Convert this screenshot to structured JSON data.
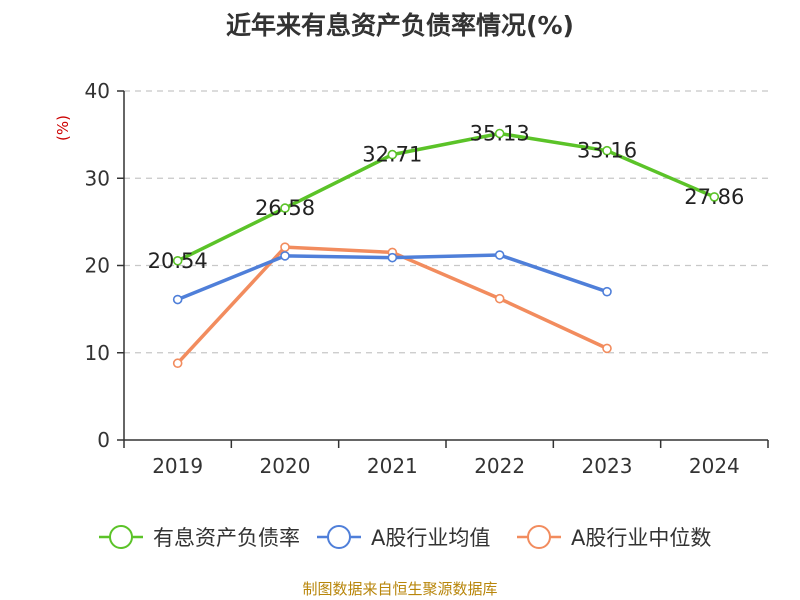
{
  "chart_data": {
    "type": "line",
    "title": "近年来有息资产负债率情况(%)",
    "ylabel": "(%)",
    "xlabel": "",
    "categories": [
      "2019",
      "2020",
      "2021",
      "2022",
      "2023",
      "2024"
    ],
    "ylim": [
      0,
      40
    ],
    "yticks": [
      0,
      10,
      20,
      30,
      40
    ],
    "grid": true,
    "legend_position": "bottom",
    "series": [
      {
        "name": "有息资产负债率",
        "color": "#5bc328",
        "values": [
          20.54,
          26.58,
          32.71,
          35.13,
          33.16,
          27.86
        ],
        "labels": [
          "20.54",
          "26.58",
          "32.71",
          "35.13",
          "33.16",
          "27.86"
        ]
      },
      {
        "name": "A股行业均值",
        "color": "#4f7fd9",
        "values": [
          16.1,
          21.1,
          20.9,
          21.2,
          17.0,
          null
        ]
      },
      {
        "name": "A股行业中位数",
        "color": "#f28c5e",
        "values": [
          8.8,
          22.1,
          21.5,
          16.2,
          10.5,
          null
        ]
      }
    ]
  },
  "source": "制图数据来自恒生聚源数据库"
}
